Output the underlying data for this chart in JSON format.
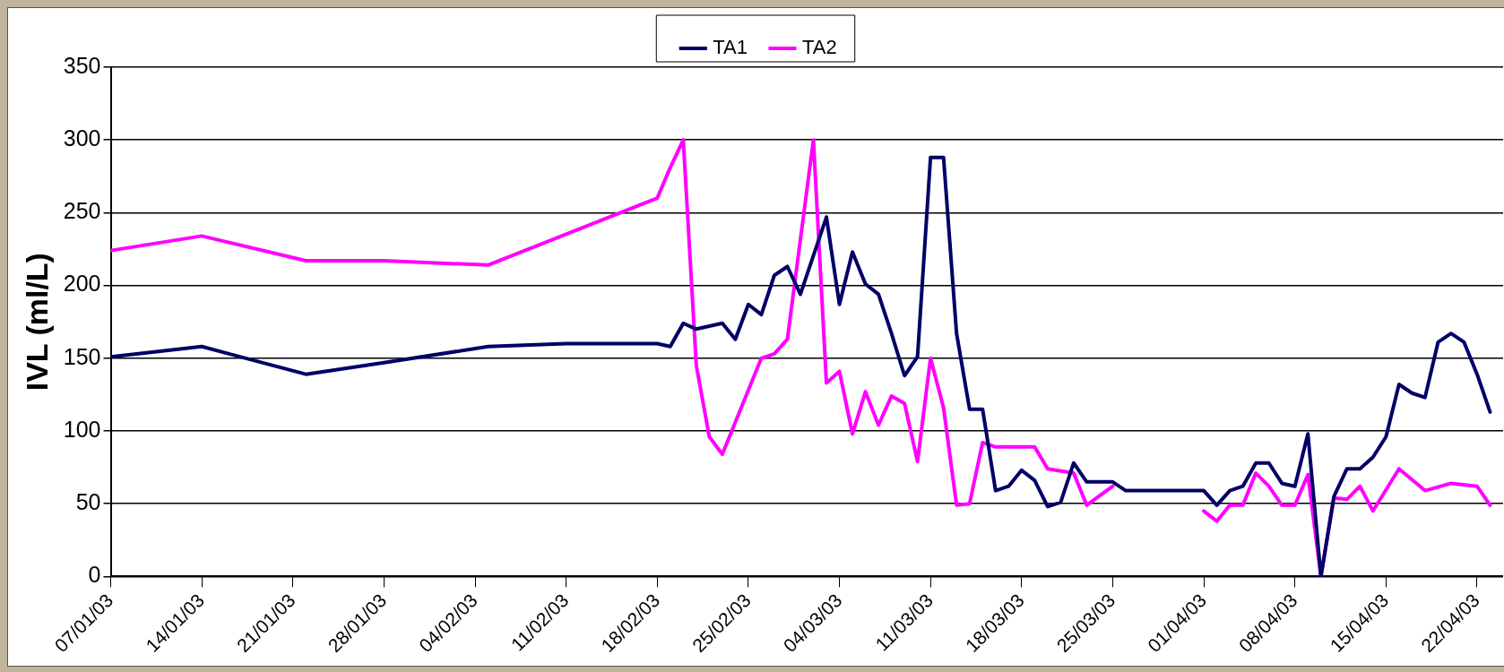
{
  "chart_data": {
    "type": "line",
    "ylabel": "IVL (ml/L)",
    "xlim": [
      "--01-07",
      "--04-24"
    ],
    "xticks": [
      {
        "value": "--01-07",
        "label": "07/01/03"
      },
      {
        "value": "--01-14",
        "label": "14/01/03"
      },
      {
        "value": "--01-21",
        "label": "21/01/03"
      },
      {
        "value": "--01-28",
        "label": "28/01/03"
      },
      {
        "value": "--02-04",
        "label": "04/02/03"
      },
      {
        "value": "--02-11",
        "label": "11/02/03"
      },
      {
        "value": "--02-18",
        "label": "18/02/03"
      },
      {
        "value": "--02-25",
        "label": "25/02/03"
      },
      {
        "value": "--03-04",
        "label": "04/03/03"
      },
      {
        "value": "--03-11",
        "label": "11/03/03"
      },
      {
        "value": "--03-18",
        "label": "18/03/03"
      },
      {
        "value": "--03-25",
        "label": "25/03/03"
      },
      {
        "value": "--04-01",
        "label": "01/04/03"
      },
      {
        "value": "--04-08",
        "label": "08/04/03"
      },
      {
        "value": "--04-15",
        "label": "15/04/03"
      },
      {
        "value": "--04-22",
        "label": "22/04/03"
      }
    ],
    "ylim": [
      0,
      350
    ],
    "yticks": [
      0,
      50,
      100,
      150,
      200,
      250,
      300,
      350
    ],
    "grid": "y",
    "legend": "top",
    "marker": "none",
    "line_style": "solid",
    "series": [
      {
        "name": "TA1",
        "color": "#000066",
        "x": [
          "--01-07",
          "--01-14",
          "--01-22",
          "--01-28",
          "--02-05",
          "--02-11",
          "--02-18",
          "--02-19",
          "--02-20",
          "--02-21",
          "--02-23",
          "--02-24",
          "--02-25",
          "--02-26",
          "--02-27",
          "--02-28",
          "--03-01",
          "--03-03",
          "--03-04",
          "--03-05",
          "--03-06",
          "--03-07",
          "--03-08",
          "--03-09",
          "--03-10",
          "--03-11",
          "--03-12",
          "--03-13",
          "--03-14",
          "--03-15",
          "--03-16",
          "--03-17",
          "--03-18",
          "--03-19",
          "--03-20",
          "--03-21",
          "--03-22",
          "--03-23",
          "--03-25",
          "--03-26",
          "--04-01",
          "--04-02",
          "--04-03",
          "--04-04",
          "--04-05",
          "--04-06",
          "--04-07",
          "--04-08",
          "--04-09",
          "--04-10",
          "--04-11",
          "--04-12",
          "--04-13",
          "--04-14",
          "--04-15",
          "--04-16",
          "--04-17",
          "--04-18",
          "--04-19",
          "--04-20",
          "--04-21",
          "--04-22",
          "--04-23"
        ],
        "values": [
          151,
          158,
          139,
          147,
          158,
          160,
          160,
          158,
          174,
          170,
          174,
          163,
          187,
          180,
          207,
          213,
          194,
          247,
          187,
          223,
          201,
          194,
          167,
          138,
          151,
          288,
          288,
          167,
          115,
          115,
          59,
          62,
          73,
          66,
          48,
          51,
          78,
          65,
          65,
          59,
          59,
          49,
          59,
          62,
          78,
          78,
          64,
          62,
          98,
          0,
          55,
          74,
          74,
          82,
          96,
          132,
          126,
          123,
          161,
          167,
          161,
          139,
          113
        ]
      },
      {
        "name": "TA2",
        "color": "#ff00ff",
        "x": [
          "--01-07",
          "--01-14",
          "--01-22",
          "--01-28",
          "--02-05",
          "--02-18",
          "--02-19",
          "--02-20",
          "--02-21",
          "--02-22",
          "--02-23",
          "--02-26",
          "--02-27",
          "--02-28",
          "--03-02",
          "--03-03",
          "--03-04",
          "--03-05",
          "--03-06",
          "--03-07",
          "--03-08",
          "--03-09",
          "--03-10",
          "--03-11",
          "--03-12",
          "--03-13",
          "--03-14",
          "--03-15",
          "--03-16",
          "--03-19",
          "--03-20",
          "--03-22",
          "--03-23",
          "--03-25",
          "--03-28",
          "--04-01",
          "--04-02",
          "--04-03",
          "--04-04",
          "--04-05",
          "--04-06",
          "--04-07",
          "--04-08",
          "--04-09",
          "--04-10",
          "--04-11",
          "--04-12",
          "--04-13",
          "--04-14",
          "--04-16",
          "--04-18",
          "--04-20",
          "--04-22",
          "--04-23"
        ],
        "values": [
          224,
          234,
          217,
          217,
          214,
          260,
          281,
          300,
          145,
          96,
          84,
          150,
          153,
          163,
          300,
          133,
          141,
          98,
          127,
          104,
          124,
          119,
          79,
          150,
          116,
          49,
          50,
          92,
          89,
          89,
          74,
          71,
          49,
          62,
          null,
          45,
          38,
          49,
          49,
          71,
          62,
          49,
          49,
          70,
          0,
          54,
          53,
          62,
          45,
          74,
          59,
          64,
          62,
          49
        ]
      }
    ]
  }
}
